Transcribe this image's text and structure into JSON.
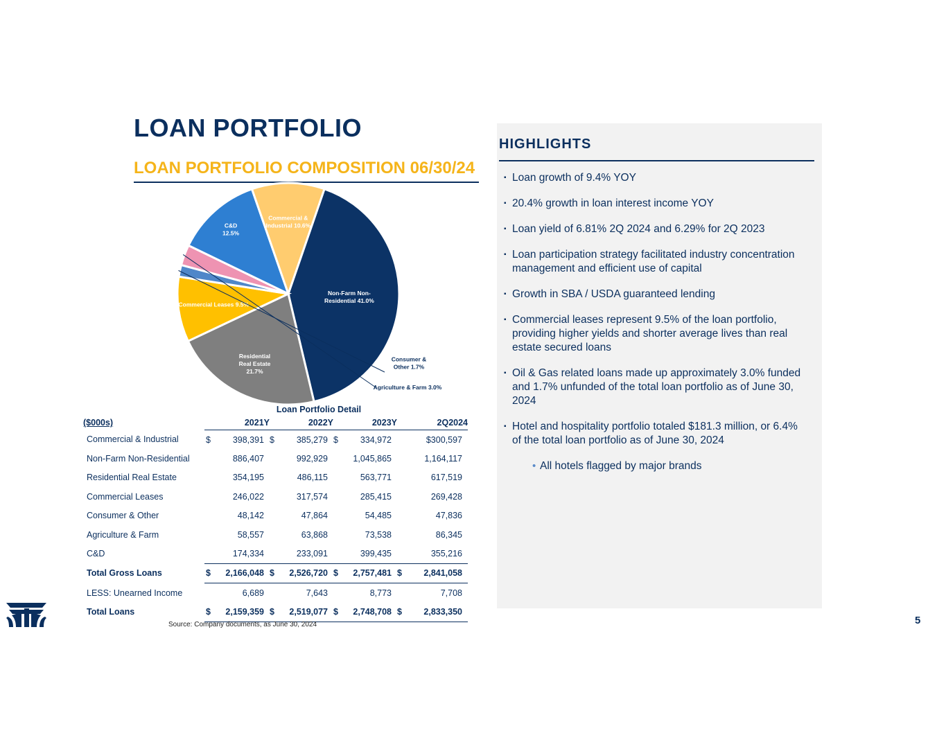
{
  "page": {
    "title": "LOAN PORTFOLIO",
    "subtitle": "LOAN PORTFOLIO COMPOSITION 06/30/24",
    "page_number": "5",
    "source": "Source: Company documents, as June 30, 2024"
  },
  "colors": {
    "navy": "#0b2f5e",
    "gold": "#f5b41a",
    "panel_bg": "#f2f2f2"
  },
  "chart_data": {
    "type": "pie",
    "title": "LOAN PORTFOLIO COMPOSITION 06/30/24",
    "slices": [
      {
        "label_lines": [
          "Non-Farm Non-",
          "Residential 41.0%"
        ],
        "value": 41.0,
        "color": "#0c3366",
        "label_color": "#ffffff"
      },
      {
        "label_lines": [
          "Residential",
          "Real Estate",
          "21.7%"
        ],
        "value": 21.7,
        "color": "#7f7f7f",
        "label_color": "#ffffff"
      },
      {
        "label_lines": [
          "Commercial  Leases 9.5%"
        ],
        "value": 9.5,
        "color": "#ffc000",
        "label_color": "#ffffff"
      },
      {
        "label_lines": [
          "Consumer &",
          "Other 1.7%"
        ],
        "value": 1.7,
        "color": "#4f87c9",
        "label_color": "#0b2f5e"
      },
      {
        "label_lines": [
          "Agriculture & Farm 3.0%"
        ],
        "value": 3.0,
        "color": "#ee93b2",
        "label_color": "#0b2f5e"
      },
      {
        "label_lines": [
          "C&D",
          "12.5%"
        ],
        "value": 12.5,
        "color": "#2e7fd2",
        "label_color": "#ffffff"
      },
      {
        "label_lines": [
          "Commercial &",
          "Industrial 10.6%"
        ],
        "value": 10.6,
        "color": "#ffcc6f",
        "label_color": "#ffffff"
      }
    ]
  },
  "detail": {
    "caption": "Loan Portfolio Detail",
    "headers": [
      "($000s)",
      "2021Y",
      "2022Y",
      "2023Y",
      "2Q2024"
    ],
    "rows": [
      {
        "label": "Commercial & Industrial",
        "cur": [
          "$",
          "$",
          "$",
          ""
        ],
        "values": [
          "398,391",
          "385,279",
          "334,972",
          "$300,597"
        ]
      },
      {
        "label": "Non-Farm Non-Residential",
        "cur": [
          "",
          "",
          "",
          ""
        ],
        "values": [
          "886,407",
          "992,929",
          "1,045,865",
          "1,164,117"
        ]
      },
      {
        "label": "Residential Real Estate",
        "cur": [
          "",
          "",
          "",
          ""
        ],
        "values": [
          "354,195",
          "486,115",
          "563,771",
          "617,519"
        ]
      },
      {
        "label": "Commercial Leases",
        "cur": [
          "",
          "",
          "",
          ""
        ],
        "values": [
          "246,022",
          "317,574",
          "285,415",
          "269,428"
        ]
      },
      {
        "label": "Consumer & Other",
        "cur": [
          "",
          "",
          "",
          ""
        ],
        "values": [
          "48,142",
          "47,864",
          "54,485",
          "47,836"
        ]
      },
      {
        "label": "Agriculture & Farm",
        "cur": [
          "",
          "",
          "",
          ""
        ],
        "values": [
          "58,557",
          "63,868",
          "73,538",
          "86,345"
        ]
      },
      {
        "label": "C&D",
        "cur": [
          "",
          "",
          "",
          ""
        ],
        "values": [
          "174,334",
          "233,091",
          "399,435",
          "355,216"
        ]
      },
      {
        "label": "Total Gross Loans",
        "cur": [
          "$",
          "$",
          "$",
          "$"
        ],
        "values": [
          "2,166,048",
          "2,526,720",
          "2,757,481",
          "2,841,058"
        ]
      },
      {
        "label": "LESS: Unearned Income",
        "cur": [
          "",
          "",
          "",
          ""
        ],
        "values": [
          "6,689",
          "7,643",
          "8,773",
          "7,708"
        ]
      },
      {
        "label": "Total Loans",
        "cur": [
          "$",
          "$",
          "$",
          "$"
        ],
        "values": [
          "2,159,359",
          "2,519,077",
          "2,748,708",
          "2,833,350"
        ]
      }
    ]
  },
  "highlights": {
    "title": "HIGHLIGHTS",
    "bullets": [
      "Loan growth of 9.4% YOY",
      "20.4% growth in loan interest income YOY",
      "Loan yield of 6.81% 2Q 2024 and 6.29% for 2Q 2023",
      "Loan participation strategy facilitated industry concentration management and efficient use of capital",
      "Growth in SBA / USDA guaranteed lending",
      "Commercial leases represent 9.5% of the loan portfolio, providing higher yields and shorter average lives than real estate secured loans",
      "Oil & Gas related loans made up approximately 3.0% funded and 1.7% unfunded of the total loan portfolio as of June 30, 2024",
      "Hotel and hospitality portfolio totaled $181.3 million, or 6.4% of the total loan portfolio as of June 30, 2024"
    ],
    "sub_bullet": "All hotels flagged by major brands",
    "bullet_glyph": "▪",
    "sub_glyph": "•"
  }
}
